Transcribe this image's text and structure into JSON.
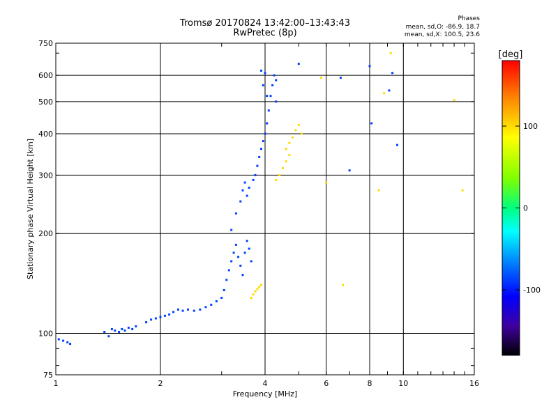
{
  "header": {
    "title": "Tromsø 20170824 13:42:00–13:43:43",
    "subtitle": "RwPretec (8p)",
    "phases_title": "Phases",
    "phases_line1": "mean, sd,O: -86.9, 18.7",
    "phases_line2": "mean, sd,X: 100.5, 23.6"
  },
  "chart_data": {
    "type": "scatter",
    "xlabel": "Frequency [MHz]",
    "ylabel": "Stationary phase Virtual Height [km]",
    "xscale": "log",
    "yscale": "log",
    "xlim": [
      1,
      16
    ],
    "ylim": [
      75,
      750
    ],
    "x_ticks": [
      1,
      2,
      4,
      6,
      8,
      10,
      16
    ],
    "y_ticks": [
      75,
      100,
      200,
      300,
      400,
      500,
      600,
      750
    ],
    "grid": true,
    "colorbar": {
      "label": "[deg]",
      "range": [
        -180,
        180
      ],
      "ticks": [
        100,
        0,
        -100
      ]
    },
    "series": [
      {
        "trace": "O-mode",
        "mean_phase": -86.9,
        "sd_phase": 18.7,
        "points": [
          [
            1.02,
            96
          ],
          [
            1.05,
            95
          ],
          [
            1.08,
            94
          ],
          [
            1.1,
            93
          ],
          [
            1.38,
            101
          ],
          [
            1.42,
            98
          ],
          [
            1.45,
            103
          ],
          [
            1.48,
            102
          ],
          [
            1.52,
            101
          ],
          [
            1.55,
            103
          ],
          [
            1.58,
            102
          ],
          [
            1.62,
            104
          ],
          [
            1.66,
            103
          ],
          [
            1.7,
            105
          ],
          [
            1.82,
            108
          ],
          [
            1.88,
            110
          ],
          [
            1.94,
            111
          ],
          [
            2.0,
            112
          ],
          [
            2.06,
            113
          ],
          [
            2.12,
            114
          ],
          [
            2.18,
            116
          ],
          [
            2.25,
            118
          ],
          [
            2.32,
            117
          ],
          [
            2.4,
            118
          ],
          [
            2.5,
            117
          ],
          [
            2.6,
            118
          ],
          [
            2.7,
            120
          ],
          [
            2.8,
            122
          ],
          [
            2.9,
            125
          ],
          [
            3.0,
            128
          ],
          [
            3.05,
            135
          ],
          [
            3.1,
            145
          ],
          [
            3.15,
            155
          ],
          [
            3.2,
            165
          ],
          [
            3.25,
            175
          ],
          [
            3.3,
            185
          ],
          [
            3.35,
            170
          ],
          [
            3.4,
            160
          ],
          [
            3.45,
            150
          ],
          [
            3.5,
            175
          ],
          [
            3.55,
            190
          ],
          [
            3.6,
            180
          ],
          [
            3.65,
            165
          ],
          [
            3.2,
            205
          ],
          [
            3.3,
            230
          ],
          [
            3.4,
            250
          ],
          [
            3.45,
            270
          ],
          [
            3.5,
            285
          ],
          [
            3.55,
            260
          ],
          [
            3.6,
            275
          ],
          [
            3.7,
            290
          ],
          [
            3.75,
            300
          ],
          [
            3.8,
            320
          ],
          [
            3.85,
            340
          ],
          [
            3.9,
            360
          ],
          [
            3.95,
            380
          ],
          [
            4.0,
            400
          ],
          [
            4.05,
            430
          ],
          [
            4.1,
            470
          ],
          [
            4.15,
            520
          ],
          [
            4.2,
            560
          ],
          [
            4.25,
            600
          ],
          [
            4.3,
            580
          ],
          [
            3.9,
            620
          ],
          [
            4.0,
            610
          ],
          [
            3.95,
            560
          ],
          [
            4.05,
            520
          ],
          [
            4.3,
            500
          ],
          [
            5.0,
            650
          ],
          [
            6.6,
            590
          ],
          [
            7.0,
            310
          ],
          [
            8.0,
            640
          ],
          [
            8.1,
            430
          ],
          [
            9.1,
            540
          ],
          [
            9.3,
            610
          ],
          [
            9.6,
            370
          ]
        ]
      },
      {
        "trace": "X-mode",
        "mean_phase": 100.5,
        "sd_phase": 23.6,
        "points": [
          [
            3.65,
            128
          ],
          [
            3.7,
            131
          ],
          [
            3.75,
            134
          ],
          [
            3.8,
            136
          ],
          [
            3.85,
            138
          ],
          [
            3.9,
            140
          ],
          [
            4.3,
            290
          ],
          [
            4.4,
            300
          ],
          [
            4.5,
            315
          ],
          [
            4.6,
            330
          ],
          [
            4.7,
            345
          ],
          [
            4.6,
            360
          ],
          [
            4.7,
            375
          ],
          [
            4.8,
            390
          ],
          [
            4.9,
            410
          ],
          [
            5.0,
            425
          ],
          [
            5.1,
            400
          ],
          [
            5.8,
            590
          ],
          [
            6.0,
            285
          ],
          [
            6.7,
            140
          ],
          [
            8.5,
            270
          ],
          [
            8.8,
            530
          ],
          [
            9.2,
            700
          ],
          [
            14.0,
            505
          ],
          [
            14.8,
            270
          ]
        ]
      }
    ]
  }
}
